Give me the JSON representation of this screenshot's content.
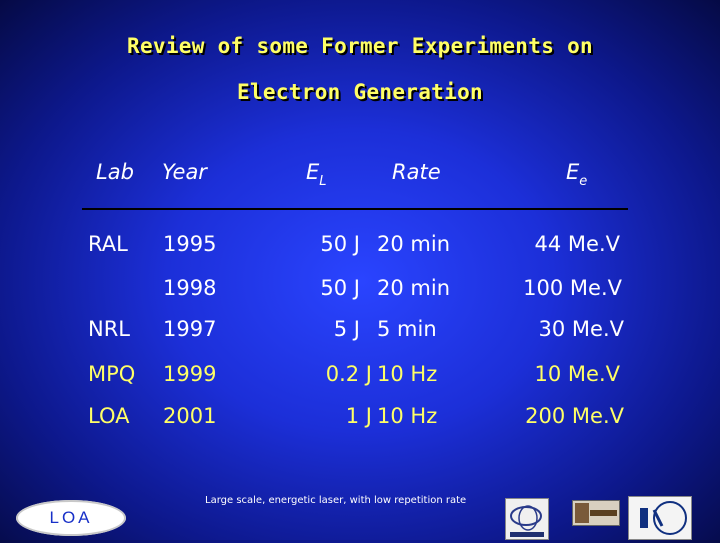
{
  "title": {
    "line1": "Review of some Former Experiments on",
    "line2": "Electron Generation"
  },
  "headers": {
    "lab": "Lab",
    "year": "Year",
    "el_main": "E",
    "el_sub": "L",
    "rate": "Rate",
    "ee_main": "E",
    "ee_sub": "e"
  },
  "rows": [
    {
      "lab": "RAL",
      "year": "1995",
      "energy": "50 J",
      "rate": "20 min",
      "ee": "44 Me.V"
    },
    {
      "lab": "",
      "year": "1998",
      "energy": "50 J",
      "rate": "20 min",
      "ee": "100 Me.V"
    },
    {
      "lab": "NRL",
      "year": "1997",
      "energy": "5 J",
      "rate": "5 min",
      "ee": "30 Me.V"
    },
    {
      "lab": "MPQ",
      "year": "1999",
      "energy": "0.2 J",
      "rate": "10 Hz",
      "ee": "10 Me.V"
    },
    {
      "lab": "LOA",
      "year": "2001",
      "energy": "1 J",
      "rate": "10 Hz",
      "ee": "200 Me.V"
    }
  ],
  "footnote": "Large scale, energetic laser, with low repetition rate",
  "logos": {
    "loa": "LOA",
    "ensta": "ENSTA",
    "polytechnique": "POLYTECHNIQUE",
    "cnrs": "CNRS"
  },
  "colors": {
    "background": "#1c2fd8",
    "title": "#ffff66",
    "italic_rows": "#ffff66",
    "text": "#ffffff"
  }
}
